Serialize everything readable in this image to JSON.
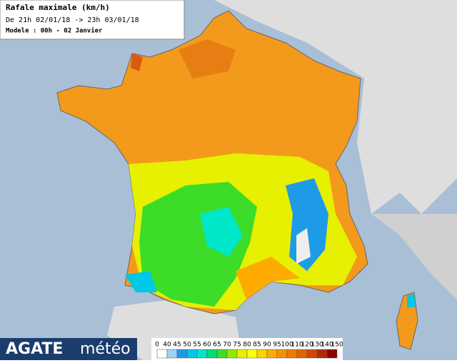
{
  "header": {
    "title": "Rafale maximale (km/h)",
    "period": "De 21h 02/01/18 -> 23h 03/01/18",
    "model": "Modele : 00h - 02 Janvier"
  },
  "logo": {
    "brand": "AGATE",
    "suffix": "météo"
  },
  "legend": {
    "ticks": [
      0,
      40,
      45,
      50,
      55,
      60,
      65,
      70,
      75,
      80,
      85,
      90,
      95,
      100,
      110,
      120,
      130,
      140,
      150
    ],
    "colors": [
      "#ffffff",
      "#9bd4f5",
      "#1e9be6",
      "#00c8e6",
      "#00e6c8",
      "#00dc78",
      "#3cdc28",
      "#96e600",
      "#e6f000",
      "#ffff00",
      "#ffd200",
      "#ffaa00",
      "#f59100",
      "#eb7d00",
      "#e06400",
      "#d24600",
      "#b42800",
      "#8c0000"
    ]
  }
}
